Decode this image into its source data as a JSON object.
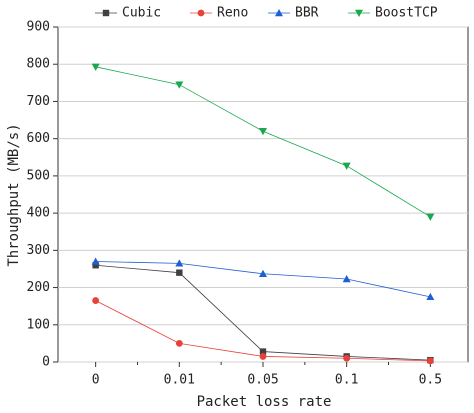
{
  "chart_data": {
    "type": "line",
    "x_label": "Packet loss rate",
    "y_label": "Throughput (MB/s)",
    "categories": [
      "0",
      "0.01",
      "0.05",
      "0.1",
      "0.5"
    ],
    "series": [
      {
        "name": "Cubic",
        "color": "#404040",
        "marker": "square",
        "values": [
          260,
          240,
          28,
          15,
          5
        ]
      },
      {
        "name": "Reno",
        "color": "#e8413a",
        "marker": "circle",
        "values": [
          165,
          50,
          15,
          10,
          3
        ]
      },
      {
        "name": "BBR",
        "color": "#1f5fd6",
        "marker": "triangle-up",
        "values": [
          270,
          265,
          237,
          223,
          175
        ]
      },
      {
        "name": "BoostTCP",
        "color": "#1aa84e",
        "marker": "triangle-down",
        "values": [
          793,
          745,
          620,
          527,
          390
        ]
      }
    ],
    "ylim": [
      0,
      900
    ],
    "yticks": [
      0,
      100,
      200,
      300,
      400,
      500,
      600,
      700,
      800,
      900
    ],
    "grid": true,
    "legend": "top"
  }
}
